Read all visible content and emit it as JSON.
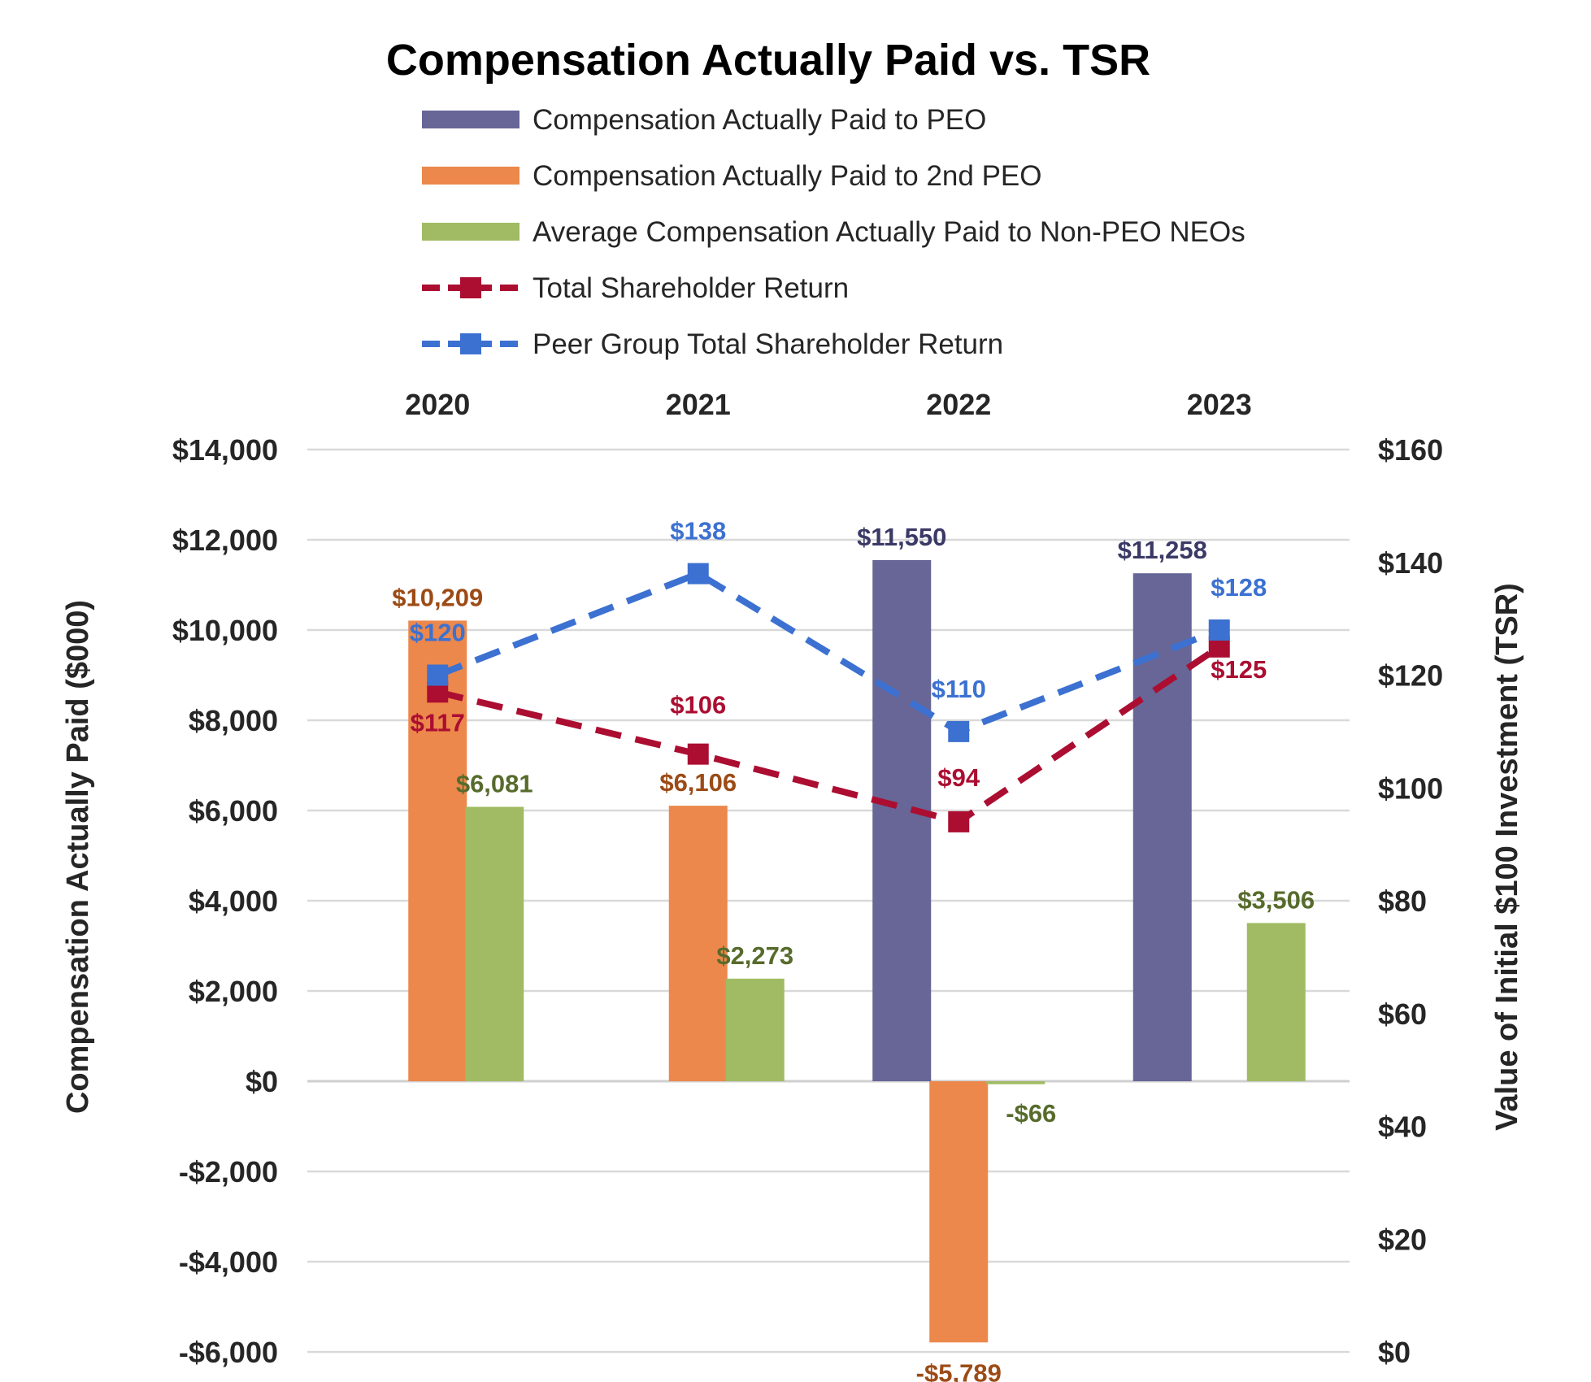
{
  "chart_data": {
    "type": "bar",
    "title": "Compensation Actually Paid vs. TSR",
    "categories": [
      "2020",
      "2021",
      "2022",
      "2023"
    ],
    "ylabel": "Compensation Actually Paid ($000)",
    "y2label": "Value of Initial $100 Investment (TSR)",
    "ylim": [
      -6000,
      14000
    ],
    "y2lim": [
      0,
      160
    ],
    "yticks": [
      {
        "value": 14000,
        "label": "$14,000"
      },
      {
        "value": 12000,
        "label": "$12,000"
      },
      {
        "value": 10000,
        "label": "$10,000"
      },
      {
        "value": 8000,
        "label": "$8,000"
      },
      {
        "value": 6000,
        "label": "$6,000"
      },
      {
        "value": 4000,
        "label": "$4,000"
      },
      {
        "value": 2000,
        "label": "$2,000"
      },
      {
        "value": 0,
        "label": "$0"
      },
      {
        "value": -2000,
        "label": "-$2,000"
      },
      {
        "value": -4000,
        "label": "-$4,000"
      },
      {
        "value": -6000,
        "label": "-$6,000"
      }
    ],
    "y2ticks": [
      {
        "value": 160,
        "label": "$160"
      },
      {
        "value": 140,
        "label": "$140"
      },
      {
        "value": 120,
        "label": "$120"
      },
      {
        "value": 100,
        "label": "$100"
      },
      {
        "value": 80,
        "label": "$80"
      },
      {
        "value": 60,
        "label": "$60"
      },
      {
        "value": 40,
        "label": "$40"
      },
      {
        "value": 20,
        "label": "$20"
      },
      {
        "value": 0,
        "label": "$0"
      }
    ],
    "grid": true,
    "legend_position": "top",
    "bar_series": [
      {
        "name": "Compensation Actually Paid to PEO",
        "color": "#676697",
        "label_color": "#3b3a66",
        "values": [
          null,
          null,
          11550,
          11258
        ],
        "labels": [
          "",
          "",
          "$11,550",
          "$11,258"
        ]
      },
      {
        "name": "Compensation Actually Paid to 2nd PEO",
        "color": "#ec884b",
        "label_color": "#9c4b16",
        "values": [
          10209,
          6106,
          -5789,
          null
        ],
        "labels": [
          "$10,209",
          "$6,106",
          "-$5,789",
          ""
        ]
      },
      {
        "name": "Average Compensation Actually Paid to Non-PEO NEOs",
        "color": "#a0bb63",
        "label_color": "#576b2c",
        "values": [
          6081,
          2273,
          -66,
          3506
        ],
        "labels": [
          "$6,081",
          "$2,273",
          "-$66",
          "$3,506"
        ]
      }
    ],
    "line_series": [
      {
        "name": "Total Shareholder Return",
        "color": "#ab0e31",
        "label_color": "#ab0e31",
        "values": [
          117,
          106,
          94,
          125
        ],
        "labels": [
          "$117",
          "$106",
          "$94",
          "$125"
        ]
      },
      {
        "name": "Peer Group Total Shareholder Return",
        "color": "#3c71d1",
        "label_color": "#3c71d1",
        "values": [
          120,
          138,
          110,
          128
        ],
        "labels": [
          "$120",
          "$138",
          "$110",
          "$128"
        ]
      }
    ]
  }
}
